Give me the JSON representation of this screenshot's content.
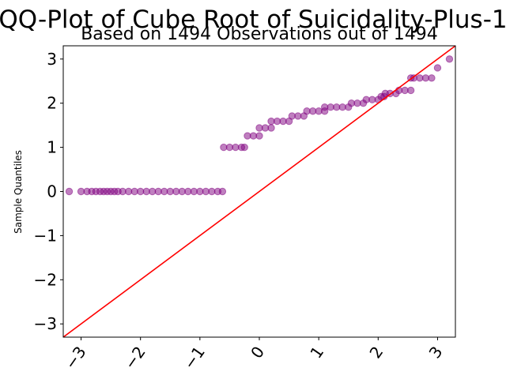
{
  "chart_data": {
    "type": "scatter",
    "title": "QQ-Plot of Cube Root of Suicidality-Plus-1",
    "subtitle": "Based on 1494 Observations out of 1494",
    "xlabel": "",
    "ylabel": "Sample Quantiles",
    "xlim": [
      -3.3,
      3.3
    ],
    "ylim": [
      -3.3,
      3.3
    ],
    "xticks": [
      -3,
      -2,
      -1,
      0,
      1,
      2,
      3
    ],
    "yticks": [
      -3,
      -2,
      -1,
      0,
      1,
      2,
      3
    ],
    "xtick_labels": [
      "−3",
      "−2",
      "−1",
      "0",
      "1",
      "2",
      "3"
    ],
    "ytick_labels": [
      "−3",
      "−2",
      "−1",
      "0",
      "1",
      "2",
      "3"
    ],
    "grid": false,
    "point_color": "#800080",
    "line_color": "#ff0000",
    "reference_line": {
      "slope": 1,
      "intercept": 0
    },
    "points": [
      [
        -3.2,
        0.0
      ],
      [
        -3.0,
        0.0
      ],
      [
        -2.9,
        0.0
      ],
      [
        -2.82,
        0.0
      ],
      [
        -2.75,
        0.0
      ],
      [
        -2.68,
        0.0
      ],
      [
        -2.62,
        0.0
      ],
      [
        -2.56,
        0.0
      ],
      [
        -2.5,
        0.0
      ],
      [
        -2.44,
        0.0
      ],
      [
        -2.38,
        0.0
      ],
      [
        -2.3,
        0.0
      ],
      [
        -2.2,
        0.0
      ],
      [
        -2.1,
        0.0
      ],
      [
        -2.0,
        0.0
      ],
      [
        -1.9,
        0.0
      ],
      [
        -1.8,
        0.0
      ],
      [
        -1.7,
        0.0
      ],
      [
        -1.6,
        0.0
      ],
      [
        -1.5,
        0.0
      ],
      [
        -1.4,
        0.0
      ],
      [
        -1.3,
        0.0
      ],
      [
        -1.2,
        0.0
      ],
      [
        -1.1,
        0.0
      ],
      [
        -1.0,
        0.0
      ],
      [
        -0.9,
        0.0
      ],
      [
        -0.8,
        0.0
      ],
      [
        -0.7,
        0.0
      ],
      [
        -0.62,
        0.0
      ],
      [
        -0.6,
        1.0
      ],
      [
        -0.5,
        1.0
      ],
      [
        -0.4,
        1.0
      ],
      [
        -0.3,
        1.0
      ],
      [
        -0.25,
        1.0
      ],
      [
        -0.2,
        1.26
      ],
      [
        -0.1,
        1.26
      ],
      [
        0.0,
        1.26
      ],
      [
        0.0,
        1.44
      ],
      [
        0.1,
        1.44
      ],
      [
        0.2,
        1.44
      ],
      [
        0.2,
        1.59
      ],
      [
        0.3,
        1.59
      ],
      [
        0.4,
        1.59
      ],
      [
        0.5,
        1.59
      ],
      [
        0.55,
        1.71
      ],
      [
        0.65,
        1.71
      ],
      [
        0.75,
        1.71
      ],
      [
        0.8,
        1.82
      ],
      [
        0.9,
        1.82
      ],
      [
        1.0,
        1.82
      ],
      [
        1.1,
        1.82
      ],
      [
        1.1,
        1.91
      ],
      [
        1.2,
        1.91
      ],
      [
        1.3,
        1.91
      ],
      [
        1.4,
        1.91
      ],
      [
        1.5,
        1.91
      ],
      [
        1.55,
        2.0
      ],
      [
        1.65,
        2.0
      ],
      [
        1.75,
        2.0
      ],
      [
        1.8,
        2.08
      ],
      [
        1.9,
        2.08
      ],
      [
        2.0,
        2.08
      ],
      [
        2.05,
        2.15
      ],
      [
        2.1,
        2.15
      ],
      [
        2.12,
        2.22
      ],
      [
        2.2,
        2.22
      ],
      [
        2.3,
        2.22
      ],
      [
        2.35,
        2.29
      ],
      [
        2.45,
        2.29
      ],
      [
        2.55,
        2.29
      ],
      [
        2.55,
        2.57
      ],
      [
        2.6,
        2.57
      ],
      [
        2.7,
        2.57
      ],
      [
        2.8,
        2.57
      ],
      [
        2.9,
        2.57
      ],
      [
        3.0,
        2.8
      ],
      [
        3.2,
        3.0
      ]
    ]
  }
}
